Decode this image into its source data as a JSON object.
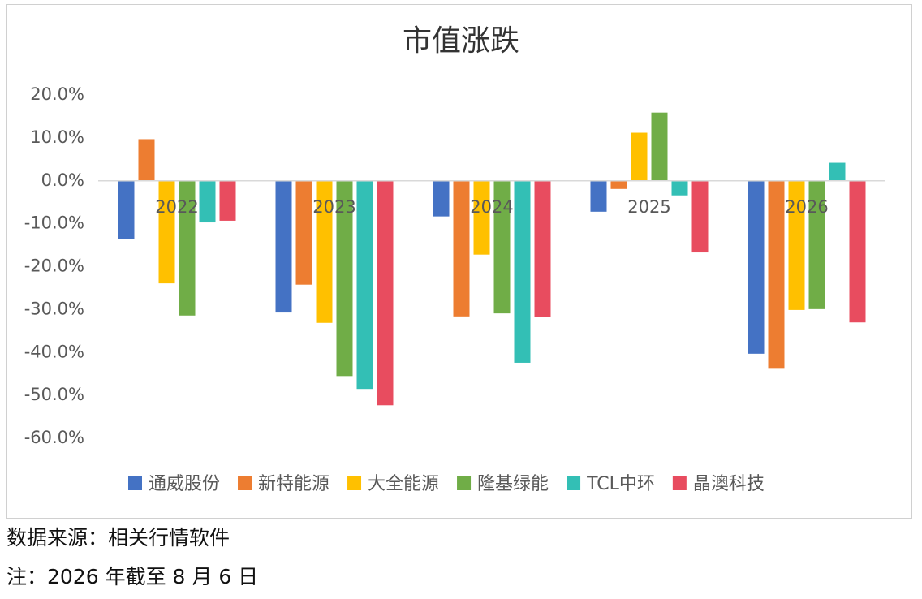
{
  "chart_data": {
    "type": "bar",
    "title": "市值涨跌",
    "categories": [
      "2022",
      "2023",
      "2024",
      "2025",
      "2026"
    ],
    "series": [
      {
        "name": "通威股份",
        "color": "#4472c4",
        "values": [
          -13.6,
          -30.7,
          -8.3,
          -7.2,
          -40.3
        ]
      },
      {
        "name": "新特能源",
        "color": "#ed7d31",
        "values": [
          9.7,
          -24.2,
          -31.6,
          -1.9,
          -43.8
        ]
      },
      {
        "name": "大全能源",
        "color": "#ffc000",
        "values": [
          -23.9,
          -33.1,
          -17.2,
          11.2,
          -30.1
        ]
      },
      {
        "name": "隆基绿能",
        "color": "#70ad47",
        "values": [
          -31.4,
          -45.5,
          -30.9,
          15.9,
          -29.9
        ]
      },
      {
        "name": "TCL中环",
        "color": "#33bfb5",
        "values": [
          -9.7,
          -48.5,
          -42.4,
          -3.4,
          4.2
        ]
      },
      {
        "name": "晶澳科技",
        "color": "#e84c5f",
        "values": [
          -9.3,
          -52.3,
          -31.8,
          -16.7,
          -33.0
        ]
      }
    ],
    "ylim": [
      -60,
      20
    ],
    "yticks": [
      {
        "value": 20,
        "label": "20.0%"
      },
      {
        "value": 10,
        "label": "10.0%"
      },
      {
        "value": 0,
        "label": "0.0%"
      },
      {
        "value": -10,
        "label": "-10.0%"
      },
      {
        "value": -20,
        "label": "-20.0%"
      },
      {
        "value": -30,
        "label": "-30.0%"
      },
      {
        "value": -40,
        "label": "-40.0%"
      },
      {
        "value": -50,
        "label": "-50.0%"
      },
      {
        "value": -60,
        "label": "-60.0%"
      }
    ],
    "legend": "bottom"
  },
  "source": "数据来源：相关行情软件",
  "note": "注：2026 年截至 8 月 6 日"
}
